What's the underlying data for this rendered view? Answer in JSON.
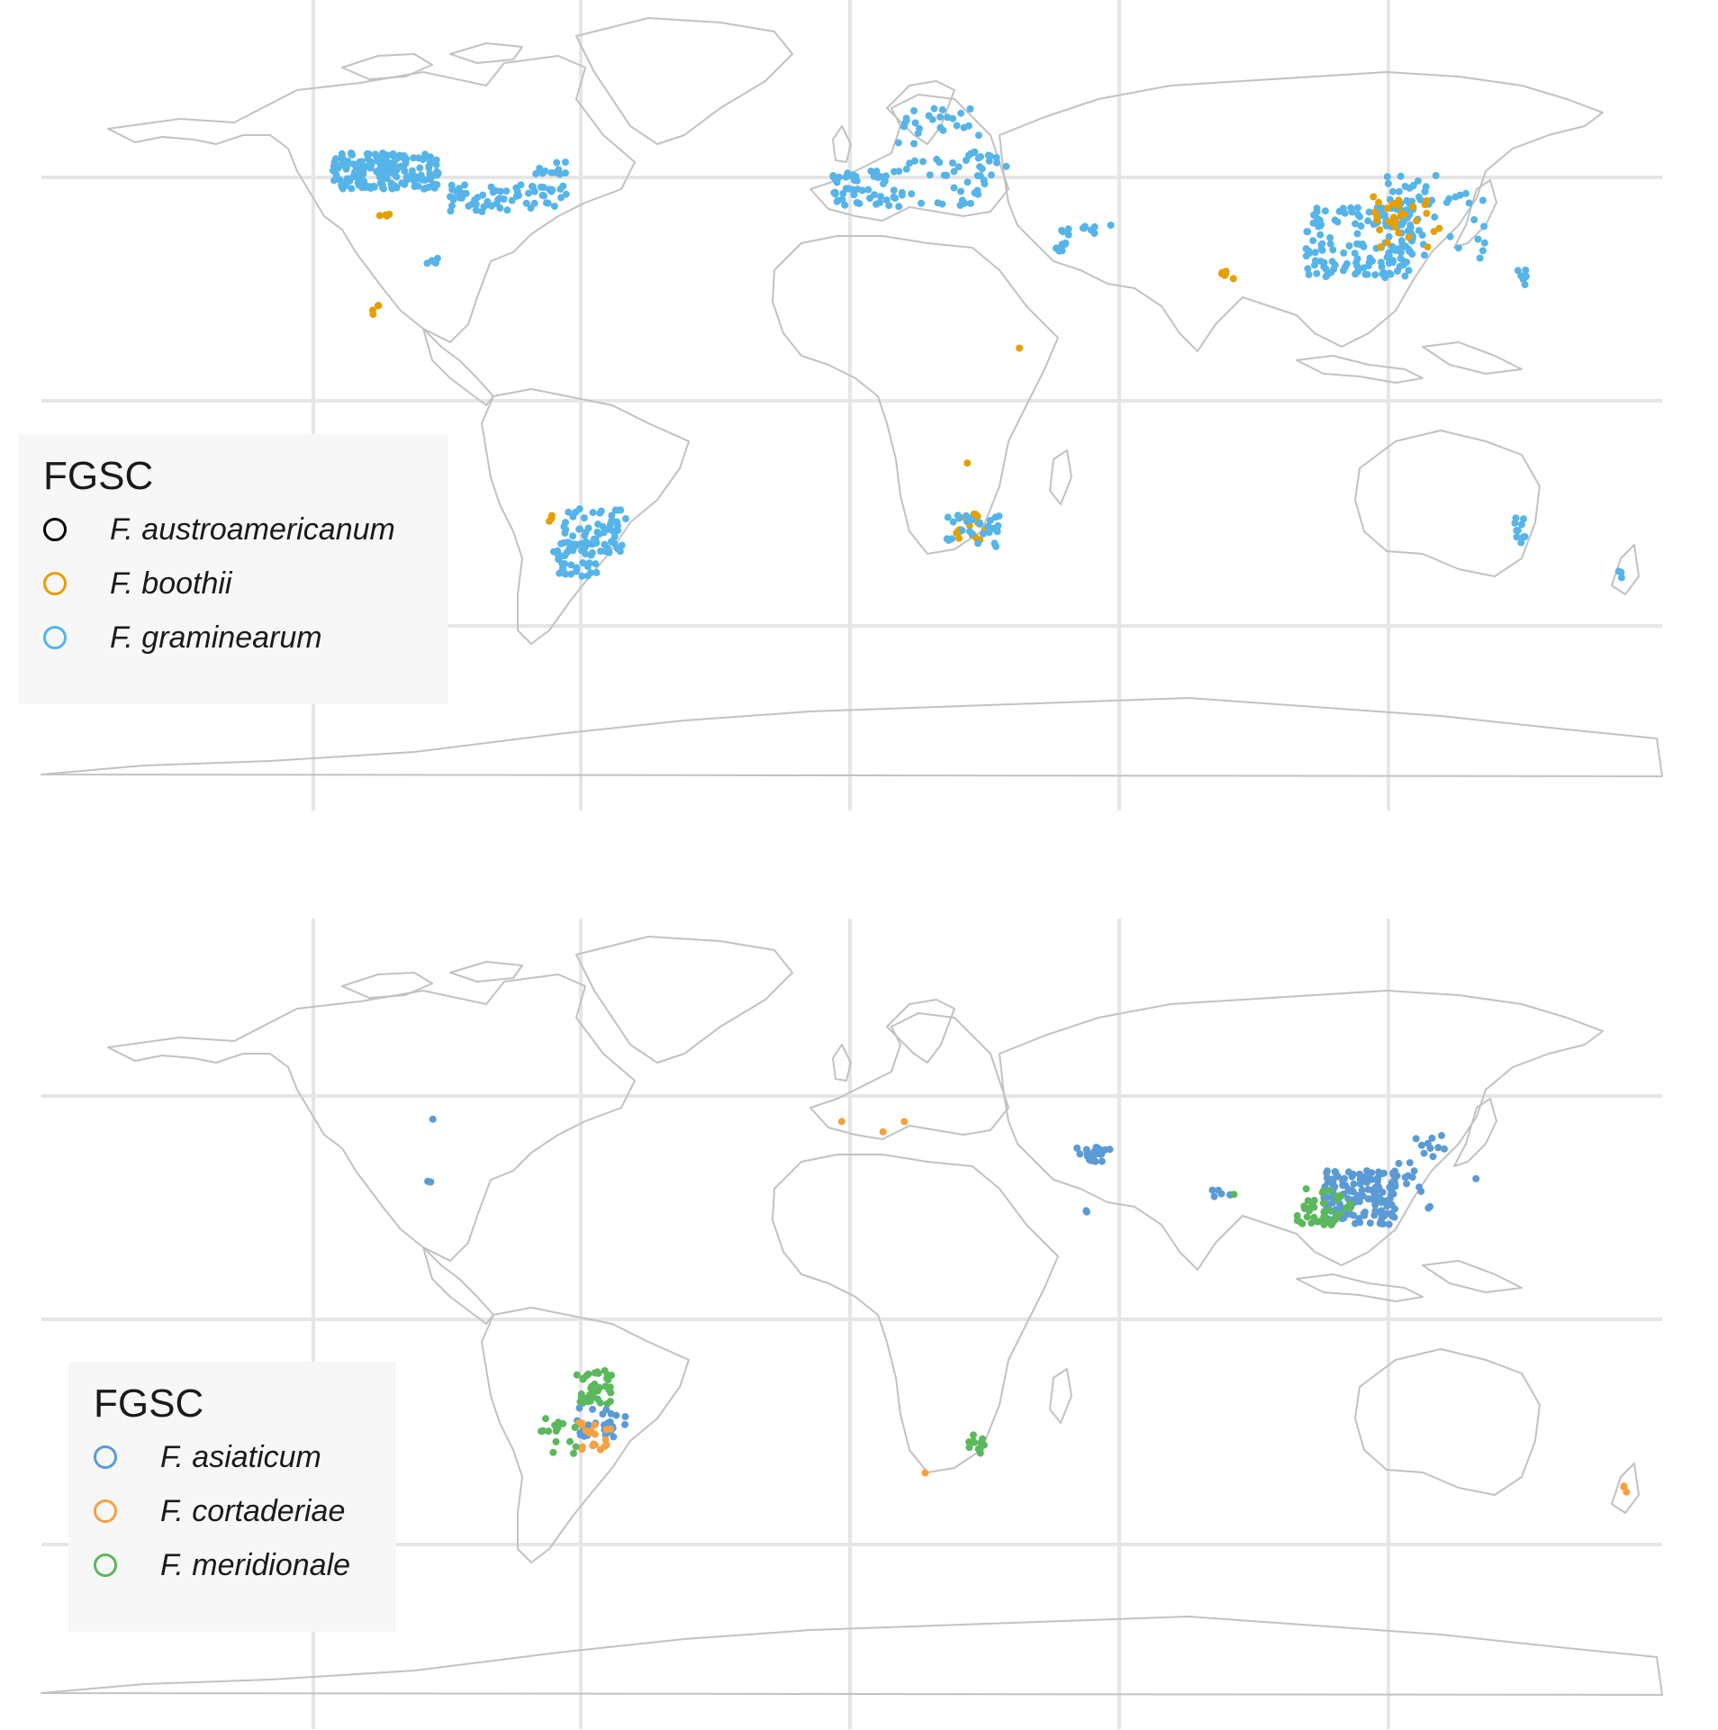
{
  "panels": [
    {
      "legend": {
        "title": "FGSC",
        "items": [
          {
            "label": "F. austroamericanum",
            "color": "#000000"
          },
          {
            "label": "F. boothii",
            "color": "#E69F00"
          },
          {
            "label": "F. graminearum",
            "color": "#56B4E9"
          }
        ]
      }
    },
    {
      "legend": {
        "title": "FGSC",
        "items": [
          {
            "label": "F. asiaticum",
            "color": "#5B9BD5"
          },
          {
            "label": "F. cortaderiae",
            "color": "#F5A142"
          },
          {
            "label": "F. meridionale",
            "color": "#5CB85C"
          }
        ]
      }
    }
  ],
  "map_style": {
    "land_outline": "#c2c2c2",
    "graticule": "#e6e6e6",
    "background": "#ffffff"
  }
}
